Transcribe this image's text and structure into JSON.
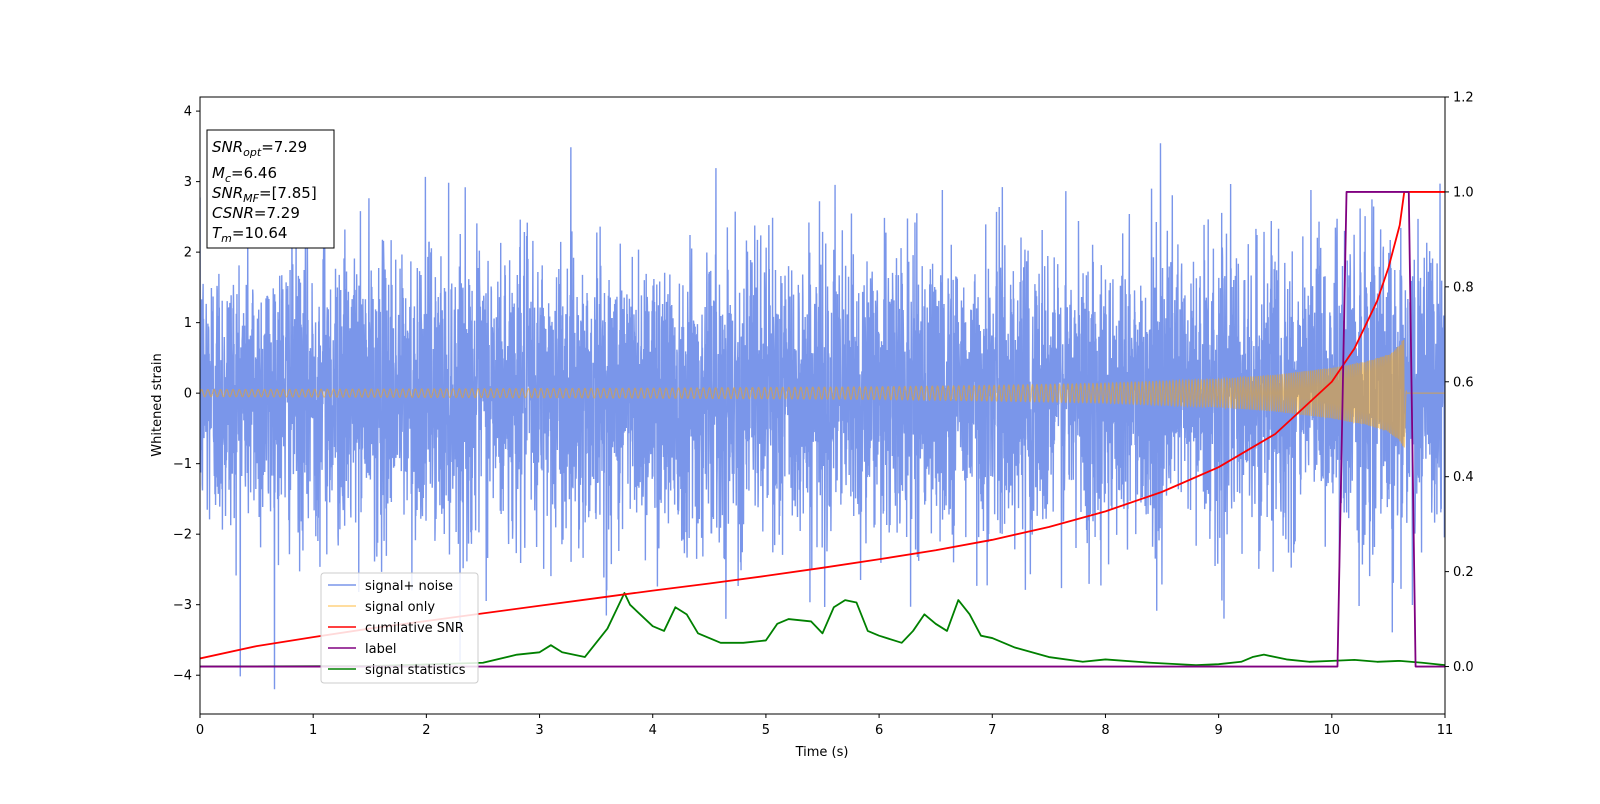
{
  "chart_data": {
    "type": "line",
    "xlabel": "Time (s)",
    "ylabel": "Whitened strain",
    "xlim": [
      0,
      11
    ],
    "ylim_left": [
      -4.55,
      4.2
    ],
    "ylim_right": [
      -0.1,
      1.2
    ],
    "x_ticks": [
      "0",
      "1",
      "2",
      "3",
      "4",
      "5",
      "6",
      "7",
      "8",
      "9",
      "10",
      "11"
    ],
    "y_ticks_left": [
      "4",
      "3",
      "2",
      "1",
      "0",
      "−1",
      "−2",
      "−3",
      "−4"
    ],
    "y_ticks_right": [
      "1.2",
      "1.0",
      "0.8",
      "0.6",
      "0.4",
      "0.2",
      "0.0"
    ],
    "grid": false,
    "legend_placement": "lower-left",
    "info_box": {
      "snr_opt": {
        "main": "SNR",
        "sub": "opt",
        "value": "=7.29"
      },
      "mc": {
        "main": "M",
        "sub": "c",
        "value": "=6.46"
      },
      "snr_mf": {
        "main": "SNR",
        "sub": "MF",
        "value": "=[7.85]"
      },
      "csnr": {
        "main": "CSNR",
        "value": "=7.29"
      },
      "tm": {
        "main": "T",
        "sub": "m",
        "value": "=10.64"
      }
    },
    "series": [
      {
        "name": "signal+ noise",
        "axis": "left",
        "color": "#4169e1",
        "alpha": 0.7,
        "noise_std": 1.0,
        "t_range": [
          0,
          11
        ]
      },
      {
        "name": "signal only",
        "axis": "left",
        "color": "#ffa500",
        "alpha": 0.5,
        "t_range": [
          0,
          11
        ],
        "envelope_t": [
          0,
          2,
          4,
          6,
          7,
          8,
          9,
          9.5,
          10,
          10.3,
          10.5,
          10.6,
          10.64,
          10.66,
          11
        ],
        "envelope_a": [
          0.05,
          0.06,
          0.07,
          0.09,
          0.11,
          0.14,
          0.2,
          0.26,
          0.36,
          0.45,
          0.55,
          0.68,
          0.8,
          0,
          0
        ]
      },
      {
        "name": "cumilative SNR",
        "axis": "right",
        "color": "#ff0000",
        "x": [
          0,
          0.5,
          1,
          1.5,
          2,
          2.5,
          3,
          3.5,
          4,
          4.5,
          5,
          5.5,
          6,
          6.5,
          7,
          7.5,
          8,
          8.5,
          9,
          9.5,
          10,
          10.2,
          10.4,
          10.5,
          10.6,
          10.64,
          11
        ],
        "y": [
          0.017,
          0.043,
          0.062,
          0.08,
          0.096,
          0.112,
          0.128,
          0.144,
          0.16,
          0.175,
          0.191,
          0.208,
          0.226,
          0.245,
          0.267,
          0.294,
          0.327,
          0.368,
          0.42,
          0.49,
          0.6,
          0.67,
          0.77,
          0.84,
          0.93,
          1.0,
          1.0
        ]
      },
      {
        "name": "label",
        "axis": "right",
        "color": "#800080",
        "x": [
          0,
          10.05,
          10.13,
          10.68,
          10.74,
          11
        ],
        "y": [
          0,
          0,
          1,
          1,
          0,
          0
        ]
      },
      {
        "name": "signal statistics",
        "axis": "right",
        "color": "#008000",
        "x": [
          0,
          1.5,
          2.5,
          2.8,
          3.0,
          3.1,
          3.2,
          3.4,
          3.5,
          3.6,
          3.7,
          3.75,
          3.8,
          4.0,
          4.1,
          4.2,
          4.3,
          4.4,
          4.6,
          4.8,
          5.0,
          5.1,
          5.2,
          5.4,
          5.5,
          5.6,
          5.7,
          5.8,
          5.9,
          6.0,
          6.2,
          6.3,
          6.4,
          6.5,
          6.6,
          6.7,
          6.8,
          6.9,
          7.0,
          7.2,
          7.5,
          7.8,
          8.0,
          8.4,
          8.8,
          9.0,
          9.2,
          9.3,
          9.4,
          9.6,
          9.8,
          10.0,
          10.2,
          10.4,
          10.6,
          10.8,
          11
        ],
        "y": [
          0.0,
          0.001,
          0.008,
          0.025,
          0.03,
          0.045,
          0.03,
          0.02,
          0.05,
          0.08,
          0.13,
          0.155,
          0.13,
          0.085,
          0.075,
          0.125,
          0.11,
          0.07,
          0.05,
          0.05,
          0.055,
          0.09,
          0.1,
          0.095,
          0.07,
          0.125,
          0.14,
          0.135,
          0.075,
          0.065,
          0.05,
          0.075,
          0.11,
          0.09,
          0.075,
          0.14,
          0.11,
          0.065,
          0.06,
          0.04,
          0.02,
          0.01,
          0.015,
          0.008,
          0.003,
          0.005,
          0.01,
          0.02,
          0.025,
          0.015,
          0.01,
          0.012,
          0.014,
          0.01,
          0.012,
          0.008,
          0.003
        ]
      }
    ]
  }
}
